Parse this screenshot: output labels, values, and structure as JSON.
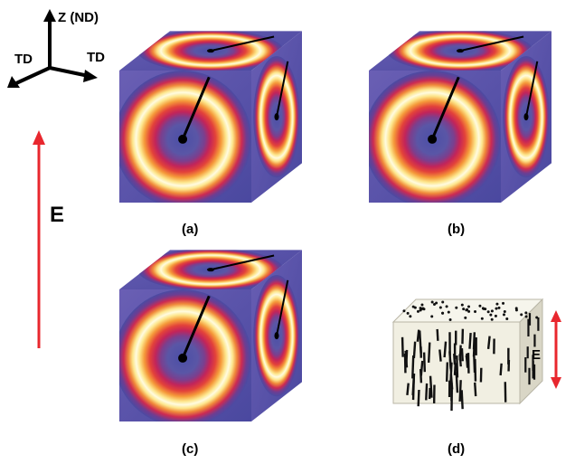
{
  "axes": {
    "z_label": "Z (ND)",
    "left_label": "TD",
    "right_label": "TD"
  },
  "field": {
    "label": "E",
    "color": "#e8272e"
  },
  "panels": [
    {
      "label": "(a)"
    },
    {
      "label": "(b)"
    },
    {
      "label": "(c)"
    },
    {
      "label": "(d)"
    }
  ],
  "scheme": {
    "field_label": "E"
  },
  "colors": {
    "background_purple": "#4e4a9f",
    "ring_red": "#d22447",
    "ring_orange": "#ee7a2c",
    "ring_yellow": "#fff6a0"
  }
}
